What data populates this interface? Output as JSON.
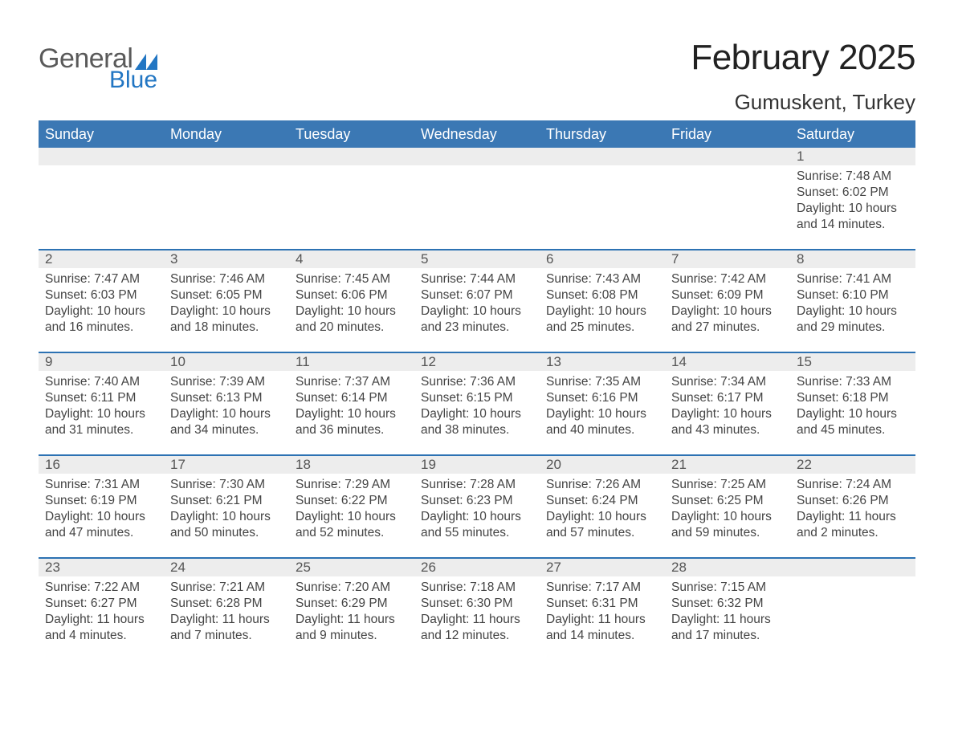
{
  "logo": {
    "word1": "General",
    "word2": "Blue",
    "word1_color": "#5a5a5a",
    "word2_color": "#2276c3",
    "triangle_color": "#2276c3"
  },
  "header": {
    "month_title": "February 2025",
    "location": "Gumuskent, Turkey"
  },
  "style": {
    "header_row_bg": "#3b78b4",
    "header_row_text": "#ffffff",
    "week_divider_color": "#2c72b3",
    "daynum_bg": "#ededed",
    "page_bg": "#ffffff",
    "body_text_color": "#444444",
    "title_text_color": "#222222",
    "font_family": "Helvetica Neue, Helvetica, Arial, sans-serif",
    "month_title_fontsize_pt": 33,
    "location_fontsize_pt": 20,
    "dow_fontsize_pt": 14,
    "cell_fontsize_pt": 12
  },
  "days_of_week": [
    "Sunday",
    "Monday",
    "Tuesday",
    "Wednesday",
    "Thursday",
    "Friday",
    "Saturday"
  ],
  "labels": {
    "sunrise": "Sunrise:",
    "sunset": "Sunset:",
    "daylight": "Daylight:"
  },
  "weeks": [
    {
      "cells": [
        null,
        null,
        null,
        null,
        null,
        null,
        {
          "day": "1",
          "sunrise": "7:48 AM",
          "sunset": "6:02 PM",
          "daylight": "10 hours and 14 minutes."
        }
      ]
    },
    {
      "cells": [
        {
          "day": "2",
          "sunrise": "7:47 AM",
          "sunset": "6:03 PM",
          "daylight": "10 hours and 16 minutes."
        },
        {
          "day": "3",
          "sunrise": "7:46 AM",
          "sunset": "6:05 PM",
          "daylight": "10 hours and 18 minutes."
        },
        {
          "day": "4",
          "sunrise": "7:45 AM",
          "sunset": "6:06 PM",
          "daylight": "10 hours and 20 minutes."
        },
        {
          "day": "5",
          "sunrise": "7:44 AM",
          "sunset": "6:07 PM",
          "daylight": "10 hours and 23 minutes."
        },
        {
          "day": "6",
          "sunrise": "7:43 AM",
          "sunset": "6:08 PM",
          "daylight": "10 hours and 25 minutes."
        },
        {
          "day": "7",
          "sunrise": "7:42 AM",
          "sunset": "6:09 PM",
          "daylight": "10 hours and 27 minutes."
        },
        {
          "day": "8",
          "sunrise": "7:41 AM",
          "sunset": "6:10 PM",
          "daylight": "10 hours and 29 minutes."
        }
      ]
    },
    {
      "cells": [
        {
          "day": "9",
          "sunrise": "7:40 AM",
          "sunset": "6:11 PM",
          "daylight": "10 hours and 31 minutes."
        },
        {
          "day": "10",
          "sunrise": "7:39 AM",
          "sunset": "6:13 PM",
          "daylight": "10 hours and 34 minutes."
        },
        {
          "day": "11",
          "sunrise": "7:37 AM",
          "sunset": "6:14 PM",
          "daylight": "10 hours and 36 minutes."
        },
        {
          "day": "12",
          "sunrise": "7:36 AM",
          "sunset": "6:15 PM",
          "daylight": "10 hours and 38 minutes."
        },
        {
          "day": "13",
          "sunrise": "7:35 AM",
          "sunset": "6:16 PM",
          "daylight": "10 hours and 40 minutes."
        },
        {
          "day": "14",
          "sunrise": "7:34 AM",
          "sunset": "6:17 PM",
          "daylight": "10 hours and 43 minutes."
        },
        {
          "day": "15",
          "sunrise": "7:33 AM",
          "sunset": "6:18 PM",
          "daylight": "10 hours and 45 minutes."
        }
      ]
    },
    {
      "cells": [
        {
          "day": "16",
          "sunrise": "7:31 AM",
          "sunset": "6:19 PM",
          "daylight": "10 hours and 47 minutes."
        },
        {
          "day": "17",
          "sunrise": "7:30 AM",
          "sunset": "6:21 PM",
          "daylight": "10 hours and 50 minutes."
        },
        {
          "day": "18",
          "sunrise": "7:29 AM",
          "sunset": "6:22 PM",
          "daylight": "10 hours and 52 minutes."
        },
        {
          "day": "19",
          "sunrise": "7:28 AM",
          "sunset": "6:23 PM",
          "daylight": "10 hours and 55 minutes."
        },
        {
          "day": "20",
          "sunrise": "7:26 AM",
          "sunset": "6:24 PM",
          "daylight": "10 hours and 57 minutes."
        },
        {
          "day": "21",
          "sunrise": "7:25 AM",
          "sunset": "6:25 PM",
          "daylight": "10 hours and 59 minutes."
        },
        {
          "day": "22",
          "sunrise": "7:24 AM",
          "sunset": "6:26 PM",
          "daylight": "11 hours and 2 minutes."
        }
      ]
    },
    {
      "cells": [
        {
          "day": "23",
          "sunrise": "7:22 AM",
          "sunset": "6:27 PM",
          "daylight": "11 hours and 4 minutes."
        },
        {
          "day": "24",
          "sunrise": "7:21 AM",
          "sunset": "6:28 PM",
          "daylight": "11 hours and 7 minutes."
        },
        {
          "day": "25",
          "sunrise": "7:20 AM",
          "sunset": "6:29 PM",
          "daylight": "11 hours and 9 minutes."
        },
        {
          "day": "26",
          "sunrise": "7:18 AM",
          "sunset": "6:30 PM",
          "daylight": "11 hours and 12 minutes."
        },
        {
          "day": "27",
          "sunrise": "7:17 AM",
          "sunset": "6:31 PM",
          "daylight": "11 hours and 14 minutes."
        },
        {
          "day": "28",
          "sunrise": "7:15 AM",
          "sunset": "6:32 PM",
          "daylight": "11 hours and 17 minutes."
        },
        null
      ]
    }
  ]
}
